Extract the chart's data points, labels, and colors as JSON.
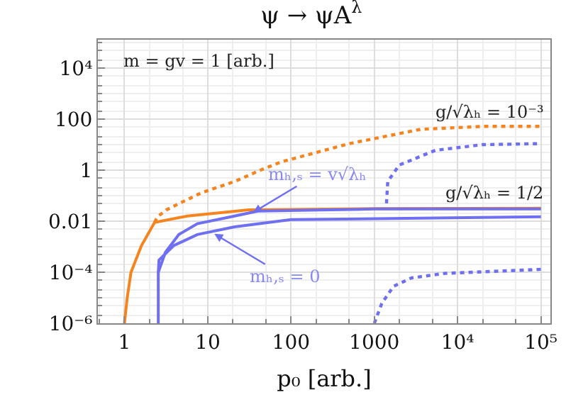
{
  "chart_data": {
    "type": "line",
    "title": "ψ → ψA$^{λ}$",
    "xlabel": "p₀ [arb.]",
    "log": "xy",
    "grid": true,
    "xlim": [
      0.48,
      130000
    ],
    "ylim": [
      1e-06,
      130000
    ],
    "xticks": [
      1,
      10,
      100,
      1000,
      {
        "value": 10000,
        "label": "10⁴"
      },
      {
        "value": 100000,
        "label": "10⁵"
      }
    ],
    "yticks": [
      {
        "value": 1e-06,
        "label": "10⁻⁶"
      },
      {
        "value": 0.0001,
        "label": "10⁻⁴"
      },
      0.01,
      1,
      100,
      {
        "value": 10000,
        "label": "10⁴"
      }
    ],
    "series": [
      {
        "color": "#f5841f",
        "line_style": "solid",
        "x": [
          1,
          1.08,
          1.2,
          1.6,
          2.3,
          5.7,
          31,
          1000,
          100000
        ],
        "values": [
          1e-06,
          1e-05,
          0.0001,
          0.0011,
          0.009,
          0.016,
          0.028,
          0.031,
          0.032
        ]
      },
      {
        "color": "#f5841f",
        "line_style": "dotted",
        "x": [
          2.3,
          2.5,
          3.2,
          4.7,
          8.4,
          21,
          46,
          76,
          500,
          3600,
          20000,
          100000
        ],
        "values": [
          0.009,
          0.015,
          0.028,
          0.052,
          0.13,
          0.36,
          1.1,
          2.1,
          11,
          40,
          52,
          52
        ]
      },
      {
        "color": "#6f6ff2",
        "line_style": "solid",
        "x": [
          2.55,
          2.55,
          3.1,
          4.5,
          7.5,
          21,
          40,
          1000,
          100000
        ],
        "values": [
          1e-06,
          0.0001,
          0.0006,
          0.003,
          0.008,
          0.016,
          0.025,
          0.03,
          0.03
        ]
      },
      {
        "color": "#6f6ff2",
        "line_style": "solid",
        "x": [
          2.55,
          2.6,
          3.9,
          7.5,
          21,
          100,
          100000
        ],
        "values": [
          0.0001,
          0.0003,
          0.0011,
          0.003,
          0.006,
          0.0115,
          0.015
        ]
      },
      {
        "color": "#6f6ff2",
        "line_style": "dotted",
        "x": [
          1400,
          1450,
          2000,
          5400,
          20000,
          100000
        ],
        "values": [
          0.05,
          0.36,
          1.6,
          6,
          10,
          11
        ]
      },
      {
        "color": "#6f6ff2",
        "line_style": "dotted",
        "x": [
          1000,
          1230,
          1700,
          2800,
          7000,
          100000
        ],
        "values": [
          1e-06,
          6e-06,
          2.8e-05,
          6e-05,
          9e-05,
          0.00013
        ]
      }
    ],
    "annotations": [
      "m = gv = 1 [arb.]",
      "g/√λₕ = 10⁻³",
      "g/√λₕ = 1/2",
      {
        "text": "mₕ,ₛ = v√λₕ",
        "x": 35,
        "y": 0.022
      },
      {
        "text": "mₕ,ₛ = 0",
        "x": 12,
        "y": 0.0032
      }
    ]
  }
}
